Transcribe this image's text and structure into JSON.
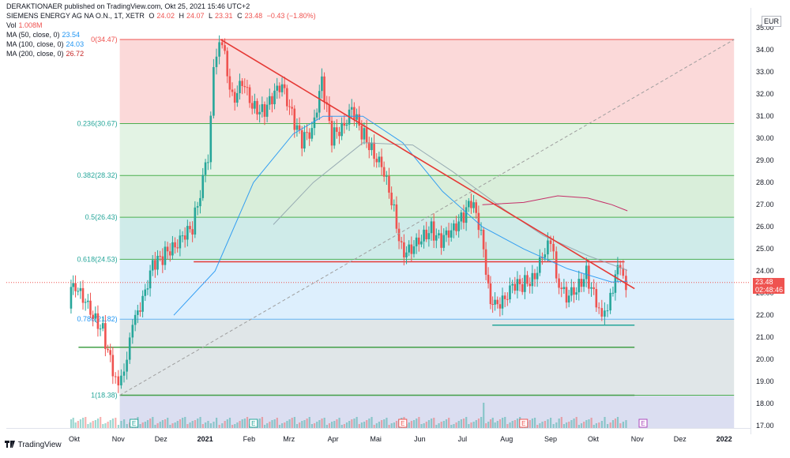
{
  "header": {
    "published": "DERAKTIONAER published on TradingView.com, Okt 25, 2021 15:46 UTC+2",
    "symbol": "SIEMENS ENERGY AG NA O.N., 1T, XETR",
    "open_label": "O",
    "open": "24.02",
    "high_label": "H",
    "high": "24.07",
    "low_label": "L",
    "low": "23.31",
    "close_label": "C",
    "close": "23.48",
    "change": "−0.43 (−1.80%)",
    "vol_label": "Vol",
    "vol": "1.008M",
    "ma50_label": "MA (50, close, 0)",
    "ma50": "23.54",
    "ma100_label": "MA (100, close, 0)",
    "ma100": "24.03",
    "ma200_label": "MA (200, close, 0)",
    "ma200": "26.72"
  },
  "price_tag": {
    "price": "23.48",
    "countdown": "02:48:46"
  },
  "currency": "EUR",
  "footer": {
    "brand": "TradingView"
  },
  "colors": {
    "up": "#26a69a",
    "down": "#ef5350",
    "ma50": "#2196f3",
    "ma100": "#90a4ae",
    "ma200": "#c2185b",
    "fib_line": "#26a69a",
    "trend": "#e53935"
  },
  "chart_data": {
    "type": "candlestick",
    "title": "",
    "xlabel": "",
    "ylabel": "",
    "ylim": [
      16.9,
      35.9
    ],
    "y_ticks": [
      "17.00",
      "18.00",
      "19.00",
      "20.00",
      "21.00",
      "22.00",
      "23.00",
      "24.00",
      "25.00",
      "26.00",
      "27.00",
      "28.00",
      "29.00",
      "30.00",
      "31.00",
      "32.00",
      "33.00",
      "34.00",
      "35.00"
    ],
    "x_ticks": [
      "Okt",
      "Nov",
      "Dez",
      "2021",
      "Feb",
      "Mrz",
      "Apr",
      "Mai",
      "Jun",
      "Jul",
      "Aug",
      "Sep",
      "Okt",
      "Nov",
      "Dez",
      "2022"
    ],
    "fib_levels": [
      {
        "label": "0(34.47)",
        "value": 34.47
      },
      {
        "label": "0.236(30.67)",
        "value": 30.67
      },
      {
        "label": "0.382(28.32)",
        "value": 28.32
      },
      {
        "label": "0.5(26.43)",
        "value": 26.43
      },
      {
        "label": "0.618(24.53)",
        "value": 24.53
      },
      {
        "label": "0.786(21.82)",
        "value": 21.82
      },
      {
        "label": "1(18.38)",
        "value": 18.38
      }
    ],
    "price_path": [
      [
        "2020-09-28",
        22.3
      ],
      [
        "2020-10-01",
        23.7
      ],
      [
        "2020-10-08",
        22.6
      ],
      [
        "2020-10-15",
        22.1
      ],
      [
        "2020-10-22",
        21.3
      ],
      [
        "2020-10-29",
        19.4
      ],
      [
        "2020-11-02",
        18.6
      ],
      [
        "2020-11-06",
        19.8
      ],
      [
        "2020-11-12",
        21.3
      ],
      [
        "2020-11-19",
        22.9
      ],
      [
        "2020-11-26",
        24.2
      ],
      [
        "2020-12-03",
        24.6
      ],
      [
        "2020-12-10",
        25.2
      ],
      [
        "2020-12-17",
        25.4
      ],
      [
        "2020-12-24",
        26.0
      ],
      [
        "2021-01-04",
        29.2
      ],
      [
        "2021-01-08",
        33.4
      ],
      [
        "2021-01-14",
        34.3
      ],
      [
        "2021-01-21",
        31.8
      ],
      [
        "2021-01-28",
        32.4
      ],
      [
        "2021-02-04",
        31.6
      ],
      [
        "2021-02-11",
        31.2
      ],
      [
        "2021-02-18",
        31.7
      ],
      [
        "2021-02-25",
        32.6
      ],
      [
        "2021-03-04",
        31.0
      ],
      [
        "2021-03-11",
        29.8
      ],
      [
        "2021-03-18",
        30.5
      ],
      [
        "2021-03-25",
        32.5
      ],
      [
        "2021-04-01",
        30.0
      ],
      [
        "2021-04-08",
        30.6
      ],
      [
        "2021-04-15",
        31.2
      ],
      [
        "2021-04-22",
        30.3
      ],
      [
        "2021-04-29",
        29.6
      ],
      [
        "2021-05-06",
        28.6
      ],
      [
        "2021-05-13",
        27.3
      ],
      [
        "2021-05-20",
        25.0
      ],
      [
        "2021-05-27",
        24.8
      ],
      [
        "2021-06-03",
        25.6
      ],
      [
        "2021-06-10",
        25.9
      ],
      [
        "2021-06-17",
        25.2
      ],
      [
        "2021-06-24",
        26.0
      ],
      [
        "2021-07-01",
        26.3
      ],
      [
        "2021-07-08",
        27.1
      ],
      [
        "2021-07-15",
        25.9
      ],
      [
        "2021-07-20",
        23.3
      ],
      [
        "2021-07-23",
        22.2
      ],
      [
        "2021-07-30",
        22.8
      ],
      [
        "2021-08-06",
        23.2
      ],
      [
        "2021-08-13",
        23.4
      ],
      [
        "2021-08-20",
        23.7
      ],
      [
        "2021-08-27",
        24.5
      ],
      [
        "2021-09-02",
        25.3
      ],
      [
        "2021-09-06",
        23.9
      ],
      [
        "2021-09-13",
        22.6
      ],
      [
        "2021-09-20",
        23.3
      ],
      [
        "2021-09-27",
        23.9
      ],
      [
        "2021-10-04",
        22.5
      ],
      [
        "2021-10-08",
        21.7
      ],
      [
        "2021-10-14",
        23.0
      ],
      [
        "2021-10-19",
        24.0
      ],
      [
        "2021-10-25",
        23.48
      ]
    ],
    "series": [
      {
        "name": "MA (50, close, 0)",
        "values": [
          [
            "2020-12-10",
            22.0
          ],
          [
            "2021-01-08",
            24.0
          ],
          [
            "2021-02-04",
            28.0
          ],
          [
            "2021-03-04",
            30.2
          ],
          [
            "2021-03-25",
            31.0
          ],
          [
            "2021-04-22",
            31.0
          ],
          [
            "2021-05-20",
            29.8
          ],
          [
            "2021-06-17",
            27.6
          ],
          [
            "2021-07-15",
            26.0
          ],
          [
            "2021-08-13",
            25.0
          ],
          [
            "2021-09-13",
            24.1
          ],
          [
            "2021-10-14",
            23.5
          ],
          [
            "2021-10-25",
            23.54
          ]
        ]
      },
      {
        "name": "MA (100, close, 0)",
        "values": [
          [
            "2021-02-18",
            26.1
          ],
          [
            "2021-03-18",
            28.0
          ],
          [
            "2021-04-22",
            29.8
          ],
          [
            "2021-05-27",
            29.7
          ],
          [
            "2021-06-24",
            28.5
          ],
          [
            "2021-07-30",
            26.8
          ],
          [
            "2021-08-27",
            25.6
          ],
          [
            "2021-09-27",
            24.7
          ],
          [
            "2021-10-25",
            24.03
          ]
        ]
      },
      {
        "name": "MA (200, close, 0)",
        "values": [
          [
            "2021-07-15",
            27.0
          ],
          [
            "2021-08-13",
            27.1
          ],
          [
            "2021-09-06",
            27.4
          ],
          [
            "2021-09-27",
            27.3
          ],
          [
            "2021-10-14",
            27.0
          ],
          [
            "2021-10-25",
            26.72
          ]
        ]
      }
    ],
    "trendlines": [
      {
        "from": [
          "2021-01-12",
          34.47
        ],
        "to": [
          "2021-10-30",
          23.2
        ]
      },
      {
        "from": [
          "2020-11-02",
          18.38
        ],
        "to": [
          "2022-01-08",
          34.47
        ],
        "style": "dashed"
      }
    ],
    "horizontal_lines": [
      {
        "from": "2020-12-24",
        "to": "2021-10-23",
        "value": 24.42,
        "color": "#e53935"
      },
      {
        "from": "2021-07-22",
        "to": "2021-10-30",
        "value": 21.55,
        "color": "#26a69a"
      },
      {
        "from": "2020-10-04",
        "to": "2021-10-30",
        "value": 20.55,
        "color": "#43a047"
      },
      {
        "from": "2020-11-02",
        "to": "2021-10-30",
        "value": 18.38,
        "color": "#43a047"
      }
    ]
  }
}
